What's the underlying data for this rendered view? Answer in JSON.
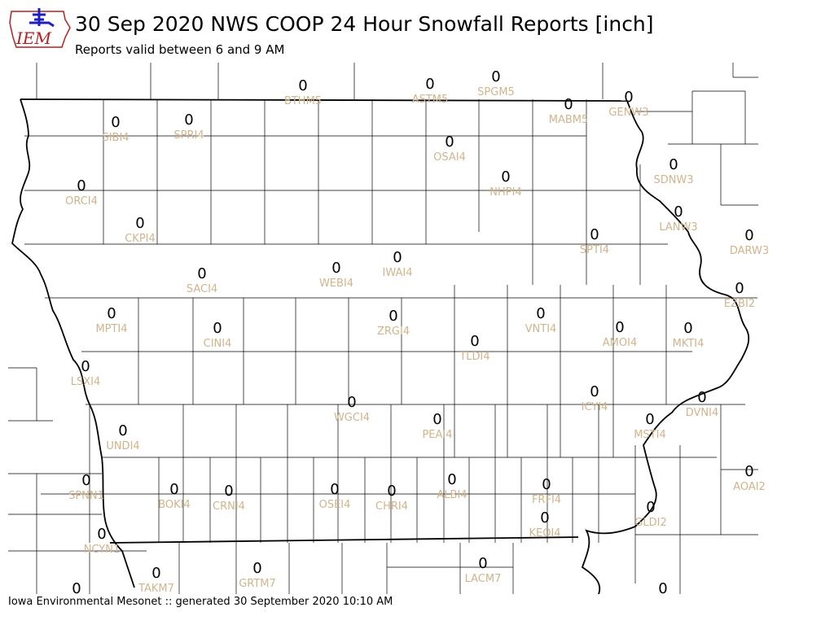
{
  "title": "30 Sep 2020 NWS COOP 24 Hour Snowfall Reports [inch]",
  "subtitle": "Reports valid between 6 and 9 AM",
  "footer": "Iowa Environmental Mesonet :: generated 30 September 2020 10:10 AM",
  "logo": {
    "text": "IEM",
    "text_color": "#b22222",
    "shape_color": "#1f1fbf"
  },
  "colors": {
    "value_text": "#000000",
    "station_text": "#d2b48c",
    "county_lines": "#000000"
  },
  "stations": [
    {
      "id": "BTHM5",
      "value": "0"
    },
    {
      "id": "ASTM5",
      "value": "0"
    },
    {
      "id": "SPGM5",
      "value": "0"
    },
    {
      "id": "MABM5",
      "value": "0"
    },
    {
      "id": "GENW3",
      "value": "0"
    },
    {
      "id": "SIBI4",
      "value": "0"
    },
    {
      "id": "SPRI4",
      "value": "0"
    },
    {
      "id": "OSAI4",
      "value": "0"
    },
    {
      "id": "SDNW3",
      "value": "0"
    },
    {
      "id": "ORCI4",
      "value": "0"
    },
    {
      "id": "NHPI4",
      "value": "0"
    },
    {
      "id": "LANW3",
      "value": "0"
    },
    {
      "id": "CKPI4",
      "value": "0"
    },
    {
      "id": "SPTI4",
      "value": "0"
    },
    {
      "id": "DARW3",
      "value": "0"
    },
    {
      "id": "WEBI4",
      "value": "0"
    },
    {
      "id": "IWAI4",
      "value": "0"
    },
    {
      "id": "SACI4",
      "value": "0"
    },
    {
      "id": "EZBI2",
      "value": "0"
    },
    {
      "id": "MPTI4",
      "value": "0"
    },
    {
      "id": "VNTI4",
      "value": "0"
    },
    {
      "id": "CINI4",
      "value": "0"
    },
    {
      "id": "ZRGI4",
      "value": "0"
    },
    {
      "id": "AMOI4",
      "value": "0"
    },
    {
      "id": "MKTI4",
      "value": "0"
    },
    {
      "id": "TLDI4",
      "value": "0"
    },
    {
      "id": "LSXI4",
      "value": "0"
    },
    {
      "id": "ICYI4",
      "value": "0"
    },
    {
      "id": "WGCI4",
      "value": "0"
    },
    {
      "id": "DVNI4",
      "value": "0"
    },
    {
      "id": "PEAI4",
      "value": "0"
    },
    {
      "id": "MSTI4",
      "value": "0"
    },
    {
      "id": "UNDI4",
      "value": "0"
    },
    {
      "id": "AOAI2",
      "value": "0"
    },
    {
      "id": "SPNN1",
      "value": "0"
    },
    {
      "id": "ALBI4",
      "value": "0"
    },
    {
      "id": "FRFI4",
      "value": "0"
    },
    {
      "id": "BOKI4",
      "value": "0"
    },
    {
      "id": "CRNI4",
      "value": "0"
    },
    {
      "id": "OSEI4",
      "value": "0"
    },
    {
      "id": "CHRI4",
      "value": "0"
    },
    {
      "id": "GLDI2",
      "value": "0"
    },
    {
      "id": "NCYN1",
      "value": "0"
    },
    {
      "id": "KEOI4",
      "value": "0"
    },
    {
      "id": "LACM7",
      "value": "0"
    },
    {
      "id": "TAKM7",
      "value": "0"
    },
    {
      "id": "GRTM7",
      "value": "0"
    }
  ],
  "unlabeled_values": [
    "0",
    "0"
  ]
}
